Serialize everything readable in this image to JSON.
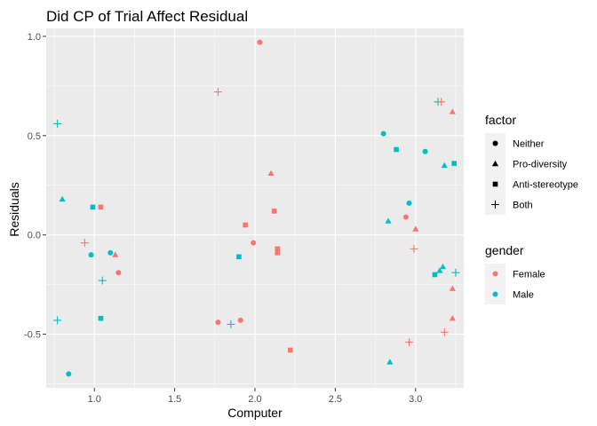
{
  "chart_data": {
    "type": "scatter",
    "title": "Did CP of Trial Affect Residual",
    "xlabel": "Computer",
    "ylabel": "Residuals",
    "xlim": [
      0.7,
      3.3
    ],
    "ylim": [
      -0.77,
      1.04
    ],
    "x_ticks": [
      1.0,
      1.5,
      2.0,
      2.5,
      3.0
    ],
    "x_tick_labels": [
      "1.0",
      "1.5",
      "2.0",
      "2.5",
      "3.0"
    ],
    "y_ticks": [
      -0.5,
      0.0,
      0.5,
      1.0
    ],
    "y_tick_labels": [
      "-0.5",
      "0.0",
      "0.5",
      "1.0"
    ],
    "grid": true,
    "legend_placement": "right",
    "legends": [
      {
        "title": "factor",
        "entries": [
          {
            "label": "Neither",
            "shape": "circle"
          },
          {
            "label": "Pro-diversity",
            "shape": "triangle"
          },
          {
            "label": "Anti-stereotype",
            "shape": "square"
          },
          {
            "label": "Both",
            "shape": "plus"
          }
        ]
      },
      {
        "title": "gender",
        "entries": [
          {
            "label": "Female",
            "color": "#F8766D"
          },
          {
            "label": "Male",
            "color": "#00BFC4"
          }
        ]
      }
    ],
    "colors": {
      "Female": "#F8766D",
      "Male": "#00BFC4"
    },
    "points": [
      {
        "x": 2.03,
        "y": 0.97,
        "gender": "Female",
        "factor": "Neither"
      },
      {
        "x": 1.77,
        "y": 0.72,
        "gender": "Female",
        "factor": "Both"
      },
      {
        "x": 0.77,
        "y": 0.56,
        "gender": "Male",
        "factor": "Both"
      },
      {
        "x": 0.8,
        "y": 0.18,
        "gender": "Male",
        "factor": "Pro-diversity"
      },
      {
        "x": 0.99,
        "y": 0.14,
        "gender": "Male",
        "factor": "Anti-stereotype"
      },
      {
        "x": 1.04,
        "y": 0.14,
        "gender": "Female",
        "factor": "Anti-stereotype"
      },
      {
        "x": 0.94,
        "y": -0.04,
        "gender": "Female",
        "factor": "Both"
      },
      {
        "x": 0.98,
        "y": -0.1,
        "gender": "Male",
        "factor": "Neither"
      },
      {
        "x": 1.1,
        "y": -0.09,
        "gender": "Male",
        "factor": "Neither"
      },
      {
        "x": 1.13,
        "y": -0.1,
        "gender": "Female",
        "factor": "Pro-diversity"
      },
      {
        "x": 1.15,
        "y": -0.19,
        "gender": "Female",
        "factor": "Neither"
      },
      {
        "x": 1.05,
        "y": -0.23,
        "gender": "Male",
        "factor": "Both"
      },
      {
        "x": 1.04,
        "y": -0.42,
        "gender": "Male",
        "factor": "Anti-stereotype"
      },
      {
        "x": 0.77,
        "y": -0.43,
        "gender": "Male",
        "factor": "Both"
      },
      {
        "x": 0.84,
        "y": -0.7,
        "gender": "Male",
        "factor": "Neither"
      },
      {
        "x": 1.94,
        "y": 0.05,
        "gender": "Female",
        "factor": "Anti-stereotype"
      },
      {
        "x": 1.99,
        "y": -0.04,
        "gender": "Female",
        "factor": "Neither"
      },
      {
        "x": 1.9,
        "y": -0.11,
        "gender": "Male",
        "factor": "Anti-stereotype"
      },
      {
        "x": 2.1,
        "y": 0.31,
        "gender": "Female",
        "factor": "Pro-diversity"
      },
      {
        "x": 2.12,
        "y": 0.12,
        "gender": "Female",
        "factor": "Anti-stereotype"
      },
      {
        "x": 2.14,
        "y": -0.07,
        "gender": "Female",
        "factor": "Anti-stereotype"
      },
      {
        "x": 2.14,
        "y": -0.09,
        "gender": "Female",
        "factor": "Anti-stereotype"
      },
      {
        "x": 1.77,
        "y": -0.44,
        "gender": "Female",
        "factor": "Neither"
      },
      {
        "x": 1.85,
        "y": -0.45,
        "gender": "Male",
        "factor": "Both"
      },
      {
        "x": 1.91,
        "y": -0.43,
        "gender": "Female",
        "factor": "Neither"
      },
      {
        "x": 2.22,
        "y": -0.58,
        "gender": "Female",
        "factor": "Anti-stereotype"
      },
      {
        "x": 2.8,
        "y": 0.51,
        "gender": "Male",
        "factor": "Neither"
      },
      {
        "x": 2.88,
        "y": 0.43,
        "gender": "Male",
        "factor": "Anti-stereotype"
      },
      {
        "x": 3.06,
        "y": 0.42,
        "gender": "Male",
        "factor": "Neither"
      },
      {
        "x": 3.14,
        "y": 0.67,
        "gender": "Male",
        "factor": "Both"
      },
      {
        "x": 3.16,
        "y": 0.67,
        "gender": "Female",
        "factor": "Both"
      },
      {
        "x": 3.23,
        "y": 0.62,
        "gender": "Female",
        "factor": "Pro-diversity"
      },
      {
        "x": 3.18,
        "y": 0.35,
        "gender": "Male",
        "factor": "Pro-diversity"
      },
      {
        "x": 3.24,
        "y": 0.36,
        "gender": "Male",
        "factor": "Anti-stereotype"
      },
      {
        "x": 2.96,
        "y": 0.16,
        "gender": "Male",
        "factor": "Neither"
      },
      {
        "x": 2.83,
        "y": 0.07,
        "gender": "Male",
        "factor": "Pro-diversity"
      },
      {
        "x": 2.94,
        "y": 0.09,
        "gender": "Female",
        "factor": "Neither"
      },
      {
        "x": 3.0,
        "y": 0.03,
        "gender": "Female",
        "factor": "Pro-diversity"
      },
      {
        "x": 2.99,
        "y": -0.07,
        "gender": "Female",
        "factor": "Both"
      },
      {
        "x": 3.12,
        "y": -0.2,
        "gender": "Male",
        "factor": "Anti-stereotype"
      },
      {
        "x": 3.15,
        "y": -0.18,
        "gender": "Male",
        "factor": "Pro-diversity"
      },
      {
        "x": 3.17,
        "y": -0.16,
        "gender": "Male",
        "factor": "Pro-diversity"
      },
      {
        "x": 3.25,
        "y": -0.19,
        "gender": "Male",
        "factor": "Both"
      },
      {
        "x": 3.23,
        "y": -0.27,
        "gender": "Female",
        "factor": "Pro-diversity"
      },
      {
        "x": 3.23,
        "y": -0.42,
        "gender": "Female",
        "factor": "Pro-diversity"
      },
      {
        "x": 3.18,
        "y": -0.49,
        "gender": "Female",
        "factor": "Both"
      },
      {
        "x": 2.96,
        "y": -0.54,
        "gender": "Female",
        "factor": "Both"
      },
      {
        "x": 2.84,
        "y": -0.64,
        "gender": "Male",
        "factor": "Pro-diversity"
      }
    ]
  }
}
